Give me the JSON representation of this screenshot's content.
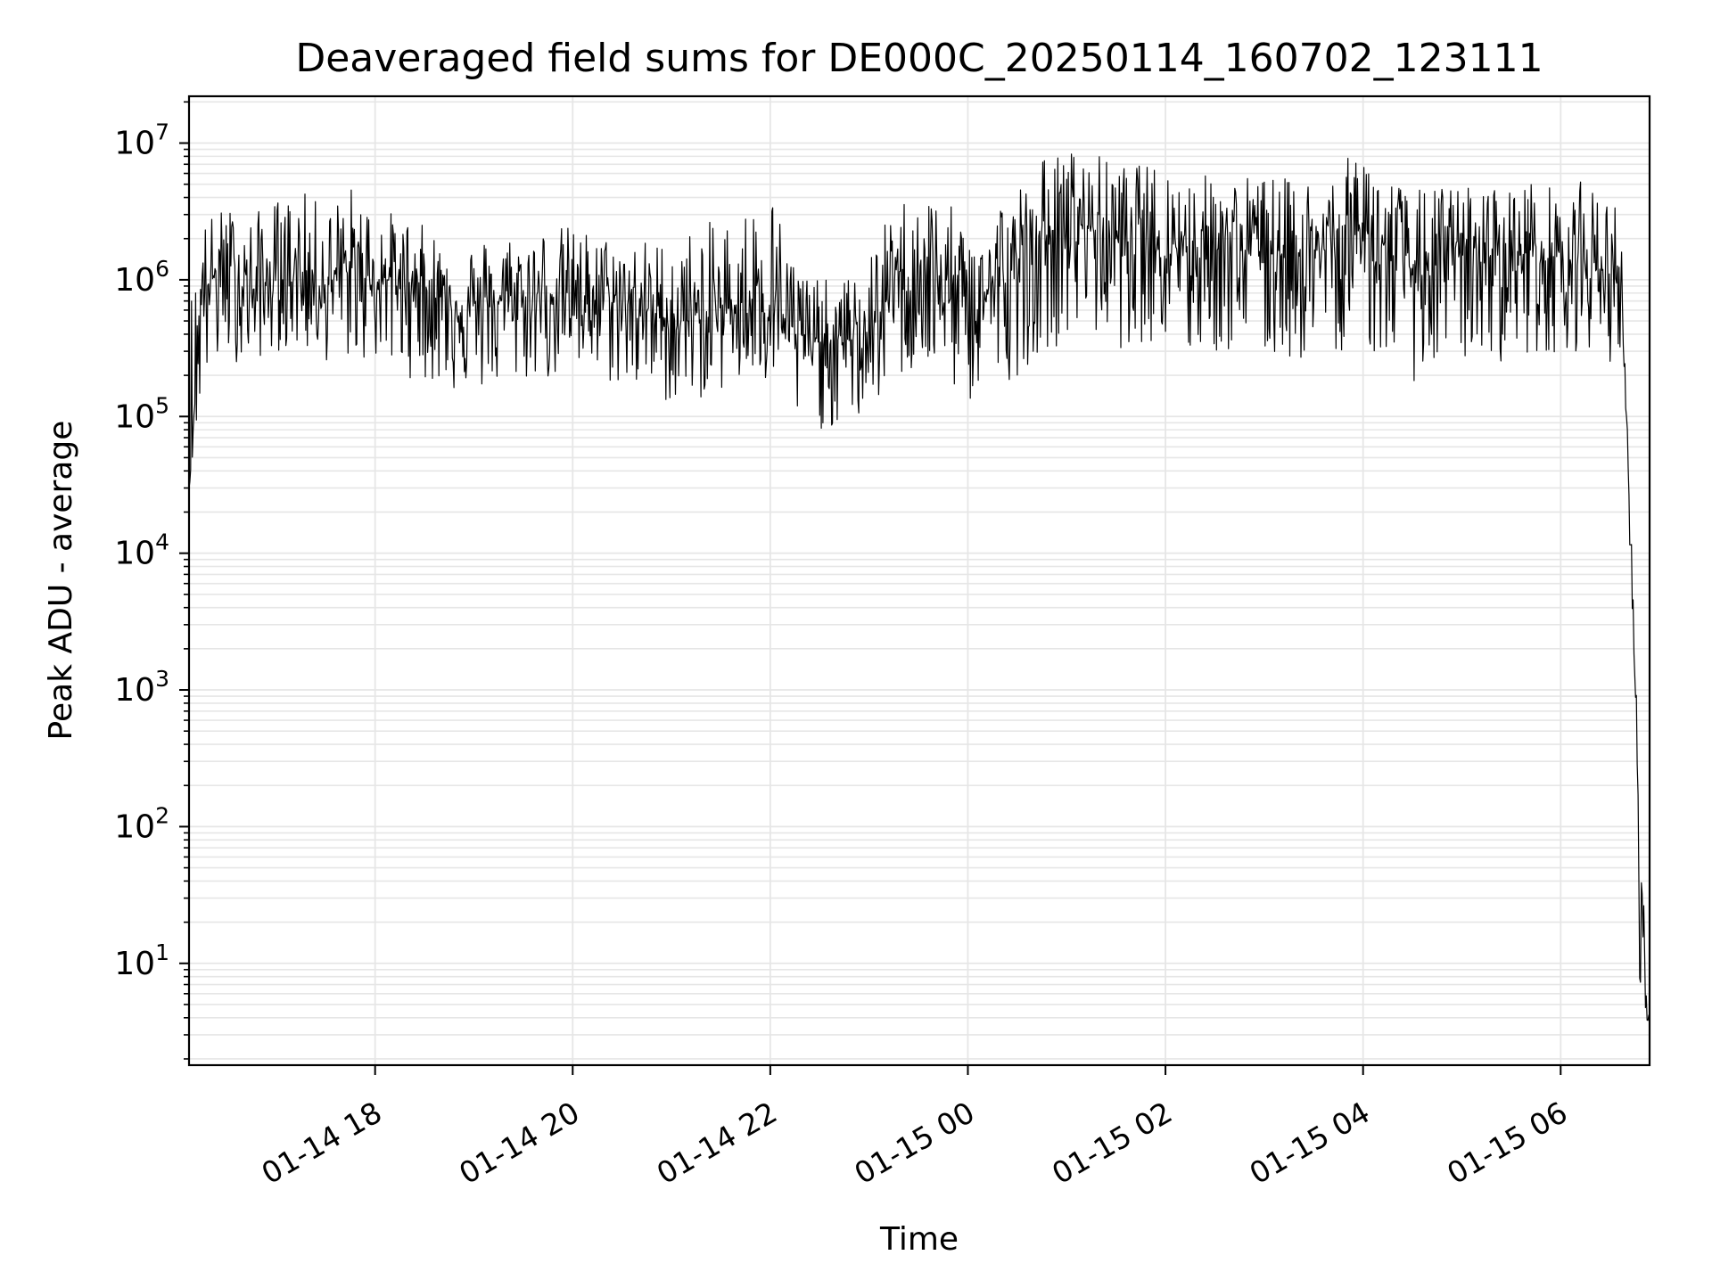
{
  "chart_data": {
    "type": "line",
    "title": "Deaveraged field sums for DE000C_20250114_160702_123111",
    "xlabel": "Time",
    "ylabel": "Peak ADU - average",
    "y_scale": "log",
    "ylim": [
      1.8,
      22000000
    ],
    "xlim": [
      "2025-01-14 16:07",
      "2025-01-15 06:54"
    ],
    "grid": "major and minor, light gray",
    "legend": "none",
    "line_color": "#000000",
    "grid_color": "#e6e6e6",
    "x_ticks": [
      {
        "value": "2025-01-14 18:00",
        "label": "01-14 18"
      },
      {
        "value": "2025-01-14 20:00",
        "label": "01-14 20"
      },
      {
        "value": "2025-01-14 22:00",
        "label": "01-14 22"
      },
      {
        "value": "2025-01-15 00:00",
        "label": "01-15 00"
      },
      {
        "value": "2025-01-15 02:00",
        "label": "01-15 02"
      },
      {
        "value": "2025-01-15 04:00",
        "label": "01-15 04"
      },
      {
        "value": "2025-01-15 06:00",
        "label": "01-15 06"
      }
    ],
    "y_ticks": [
      {
        "value": 10,
        "base": "10",
        "exp": "1"
      },
      {
        "value": 100,
        "base": "10",
        "exp": "2"
      },
      {
        "value": 1000,
        "base": "10",
        "exp": "3"
      },
      {
        "value": 10000,
        "base": "10",
        "exp": "4"
      },
      {
        "value": 100000,
        "base": "10",
        "exp": "5"
      },
      {
        "value": 1000000,
        "base": "10",
        "exp": "6"
      },
      {
        "value": 10000000,
        "base": "10",
        "exp": "7"
      }
    ],
    "series": [
      {
        "x": [
          "2025-01-14 16:07",
          "2025-01-14 16:15",
          "2025-01-14 16:30",
          "2025-01-14 16:45",
          "2025-01-14 17:00",
          "2025-01-14 17:15",
          "2025-01-14 17:30",
          "2025-01-14 17:45",
          "2025-01-14 18:00",
          "2025-01-14 18:15",
          "2025-01-14 18:30",
          "2025-01-14 18:45",
          "2025-01-14 19:00",
          "2025-01-14 19:15",
          "2025-01-14 19:30",
          "2025-01-14 19:45",
          "2025-01-14 20:00",
          "2025-01-14 20:15",
          "2025-01-14 20:30",
          "2025-01-14 20:45",
          "2025-01-14 21:00",
          "2025-01-14 21:15",
          "2025-01-14 21:30",
          "2025-01-14 21:45",
          "2025-01-14 22:00",
          "2025-01-14 22:15",
          "2025-01-14 22:30",
          "2025-01-14 22:45",
          "2025-01-14 23:00",
          "2025-01-14 23:15",
          "2025-01-14 23:30",
          "2025-01-14 23:45",
          "2025-01-15 00:00",
          "2025-01-15 00:15",
          "2025-01-15 00:30",
          "2025-01-15 00:45",
          "2025-01-15 01:00",
          "2025-01-15 01:15",
          "2025-01-15 01:30",
          "2025-01-15 01:45",
          "2025-01-15 02:00",
          "2025-01-15 02:15",
          "2025-01-15 02:30",
          "2025-01-15 02:45",
          "2025-01-15 03:00",
          "2025-01-15 03:15",
          "2025-01-15 03:30",
          "2025-01-15 03:45",
          "2025-01-15 04:00",
          "2025-01-15 04:15",
          "2025-01-15 04:30",
          "2025-01-15 04:45",
          "2025-01-15 05:00",
          "2025-01-15 05:15",
          "2025-01-15 05:30",
          "2025-01-15 05:45",
          "2025-01-15 06:00",
          "2025-01-15 06:15",
          "2025-01-15 06:30",
          "2025-01-15 06:37",
          "2025-01-15 06:40",
          "2025-01-15 06:42",
          "2025-01-15 06:44",
          "2025-01-15 06:46",
          "2025-01-15 06:48",
          "2025-01-15 06:54"
        ],
        "y": [
          30000,
          900000,
          1200000,
          800000,
          1000000,
          1100000,
          900000,
          1200000,
          1000000,
          1000000,
          900000,
          700000,
          600000,
          700000,
          700000,
          800000,
          800000,
          700000,
          700000,
          600000,
          500000,
          500000,
          600000,
          700000,
          800000,
          400000,
          350000,
          350000,
          400000,
          900000,
          1100000,
          900000,
          600000,
          900000,
          1000000,
          2000000,
          2500000,
          2500000,
          2000000,
          2200000,
          2000000,
          1800000,
          1800000,
          1700000,
          1700000,
          1600000,
          1600000,
          1700000,
          2500000,
          1500000,
          1200000,
          1300000,
          1500000,
          1500000,
          1500000,
          1600000,
          1400000,
          1400000,
          1100000,
          1000000,
          100000,
          20000,
          3000,
          800,
          10,
          3.8
        ],
        "range_low": [
          30000,
          150000,
          250000,
          250000,
          300000,
          300000,
          250000,
          250000,
          250000,
          200000,
          180000,
          150000,
          150000,
          150000,
          180000,
          180000,
          200000,
          180000,
          160000,
          140000,
          120000,
          130000,
          150000,
          160000,
          150000,
          90000,
          80000,
          80000,
          100000,
          180000,
          200000,
          180000,
          120000,
          150000,
          200000,
          300000,
          350000,
          400000,
          300000,
          350000,
          300000,
          250000,
          280000,
          280000,
          250000,
          250000,
          250000,
          300000,
          300000,
          250000,
          180000,
          200000,
          250000,
          250000,
          250000,
          280000,
          300000,
          300000,
          250000,
          200000,
          90000,
          10000,
          2000,
          500,
          3.8,
          3.8
        ],
        "range_high": [
          1000000,
          2800000,
          3500000,
          3000000,
          4000000,
          4500000,
          3500000,
          5000000,
          3500000,
          3000000,
          2500000,
          2000000,
          2000000,
          2200000,
          2300000,
          2500000,
          2500000,
          2200000,
          2000000,
          2000000,
          2000000,
          2500000,
          2800000,
          3500000,
          5000000,
          1500000,
          1000000,
          1000000,
          1500000,
          3500000,
          5000000,
          4000000,
          2500000,
          4000000,
          5000000,
          8000000,
          9000000,
          9000000,
          7000000,
          7000000,
          7000000,
          6000000,
          6000000,
          6000000,
          6000000,
          5500000,
          6000000,
          6500000,
          10500000,
          6000000,
          4500000,
          5000000,
          5000000,
          5000000,
          5000000,
          5500000,
          4500000,
          5500000,
          4000000,
          3500000,
          600000,
          35000,
          6000,
          1000,
          100,
          4.5
        ]
      }
    ]
  }
}
